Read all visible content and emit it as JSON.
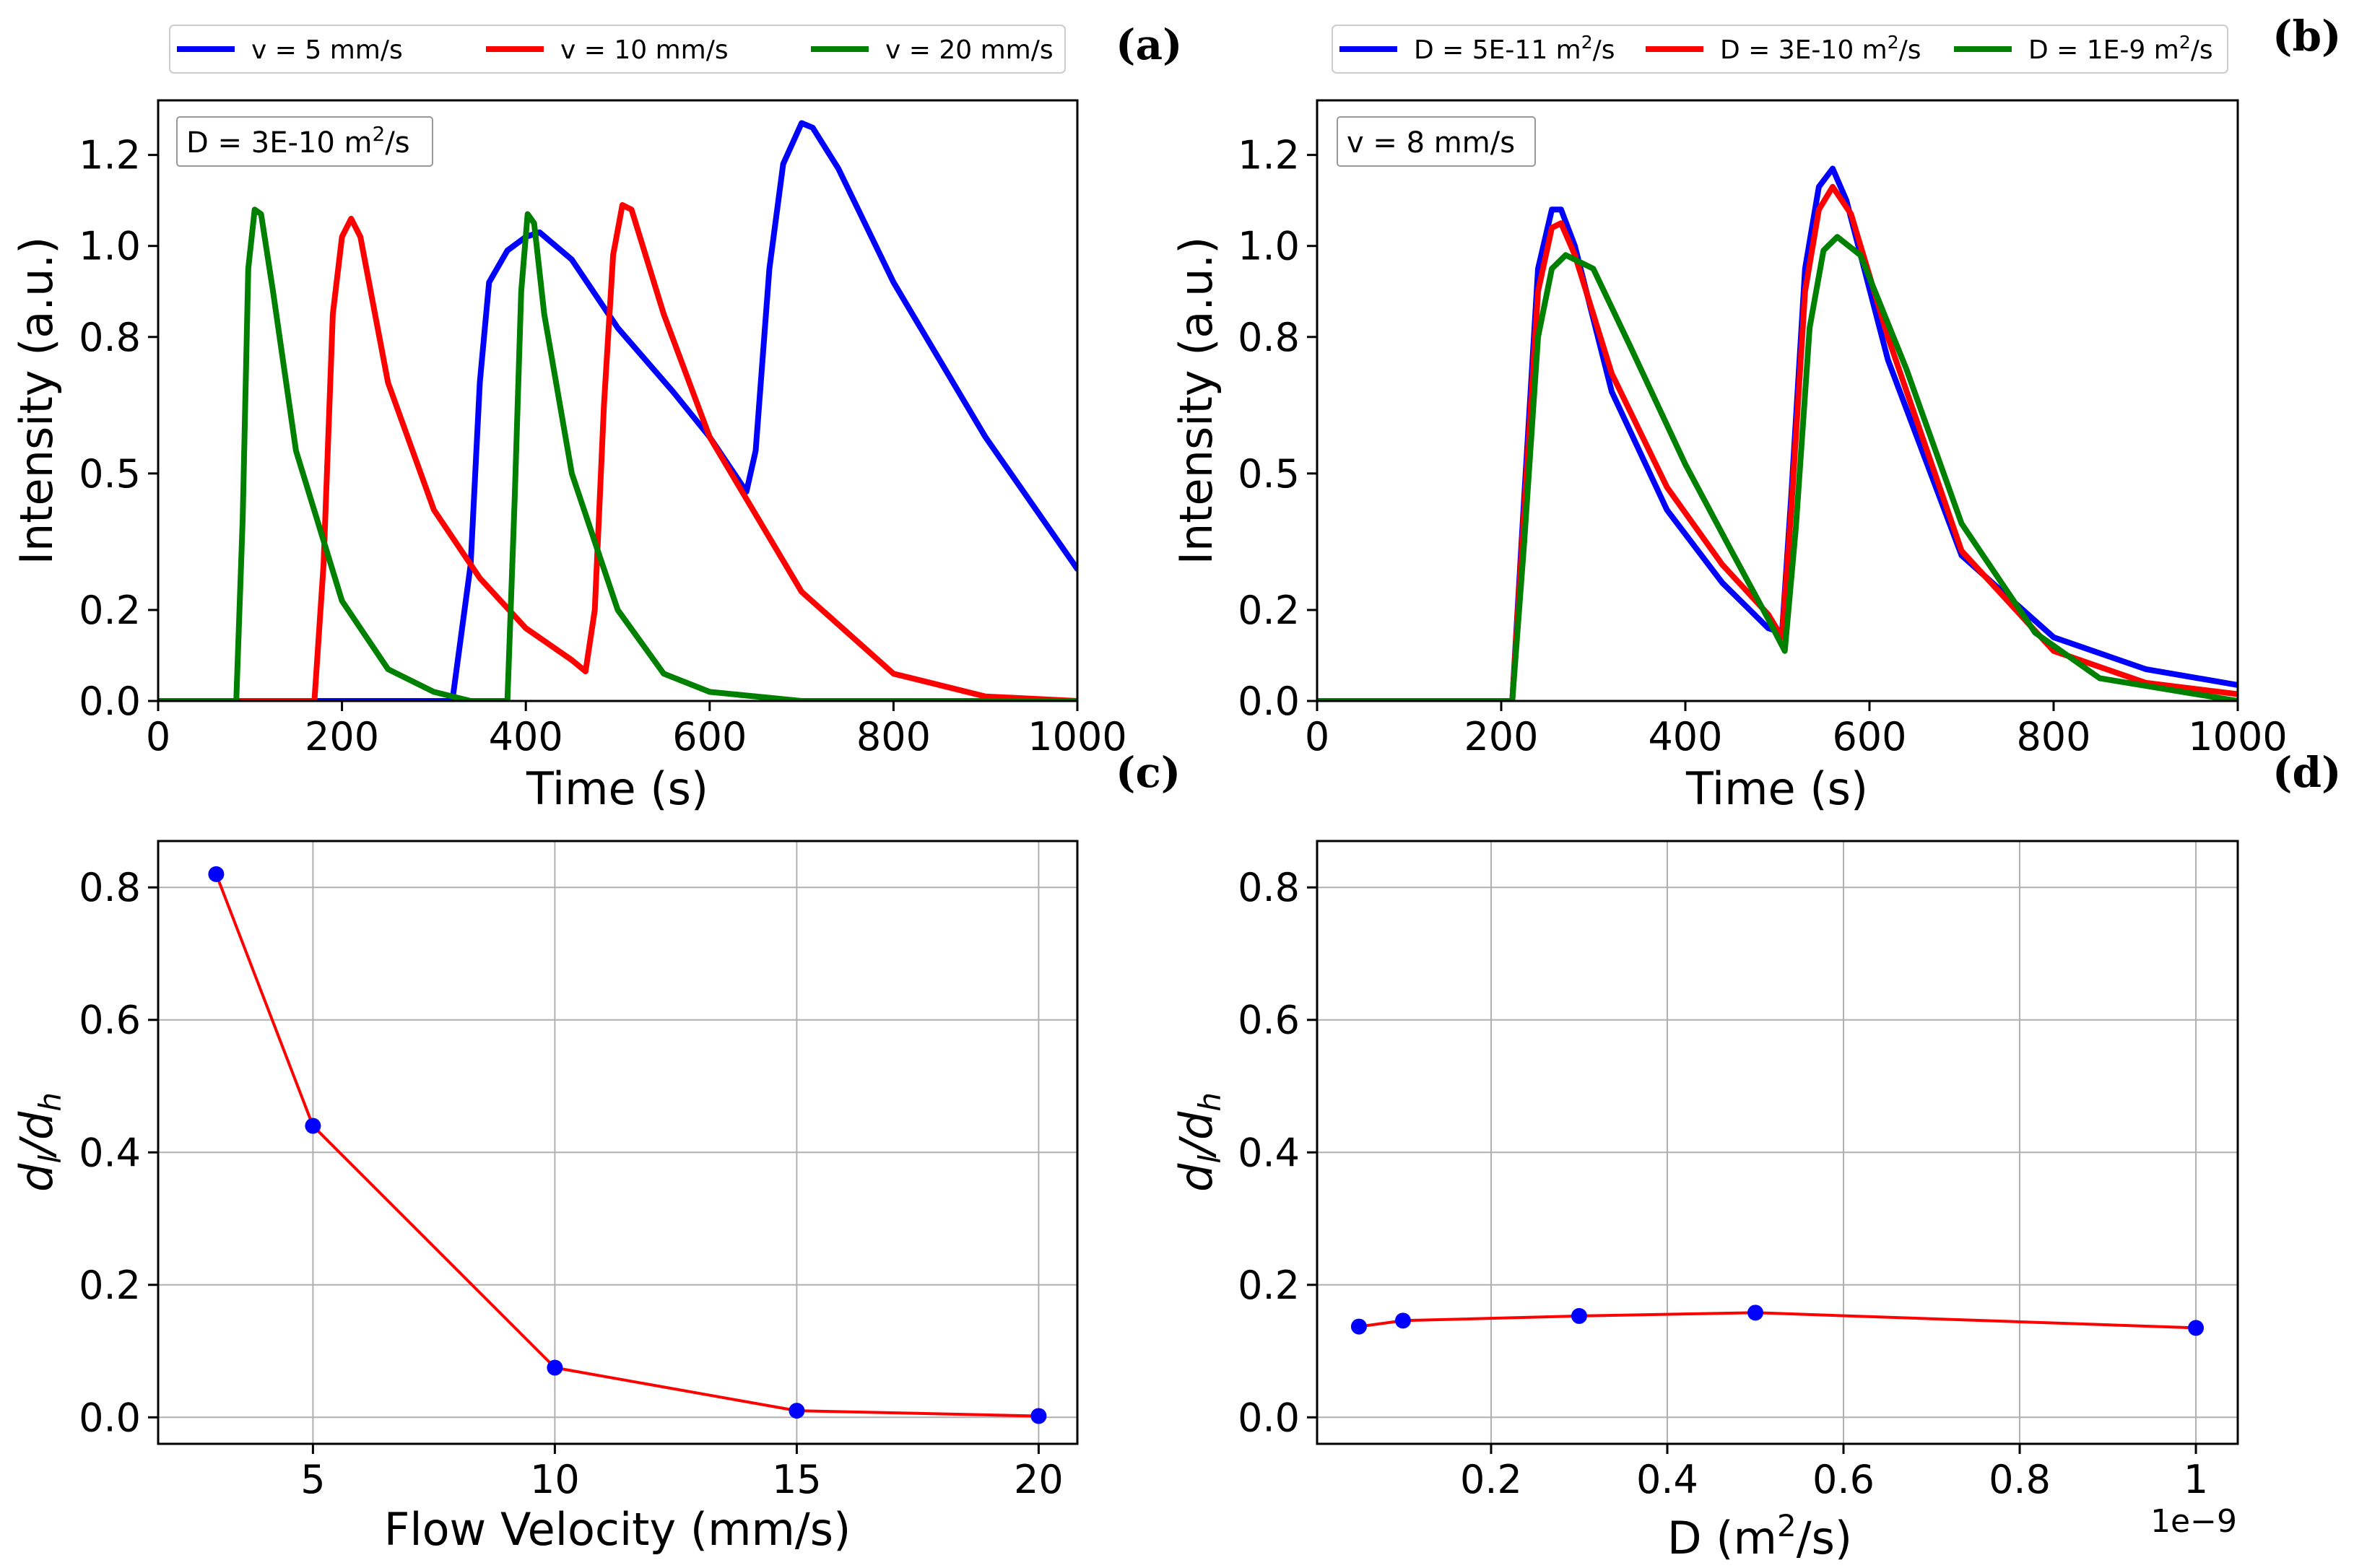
{
  "chart_data": [
    {
      "panel": "a",
      "label": "(a)",
      "type": "line",
      "xlabel": "Time (s)",
      "ylabel": "Intensity (a.u.)",
      "xlim": [
        0,
        1000
      ],
      "ylim": [
        0,
        1.32
      ],
      "xticks": [
        0,
        200,
        400,
        600,
        800,
        1000
      ],
      "yticks": [
        0.0,
        0.2,
        0.5,
        0.8,
        1.0,
        1.2
      ],
      "ytick_labels": [
        "0.0",
        "0.2",
        "0.5",
        "0.8",
        "1.0",
        "1.2"
      ],
      "annotation": {
        "main": "D = 3E-10 m",
        "sup": "2",
        "tail": "/s"
      },
      "legend": [
        {
          "main": "v = 5 mm/s",
          "sup": "",
          "tail": ""
        },
        {
          "main": "v = 10 mm/s",
          "sup": "",
          "tail": ""
        },
        {
          "main": "v = 20 mm/s",
          "sup": "",
          "tail": ""
        }
      ],
      "series": [
        {
          "name": "v = 5 mm/s",
          "color": "#0000ff",
          "x": [
            0,
            320,
            340,
            350,
            360,
            380,
            400,
            415,
            450,
            500,
            560,
            600,
            640,
            650,
            665,
            680,
            700,
            712,
            740,
            800,
            900,
            1000
          ],
          "y": [
            0,
            0,
            0.3,
            0.7,
            0.92,
            0.99,
            1.02,
            1.03,
            0.97,
            0.82,
            0.68,
            0.58,
            0.46,
            0.55,
            0.95,
            1.18,
            1.27,
            1.26,
            1.17,
            0.92,
            0.58,
            0.29
          ]
        },
        {
          "name": "v = 10 mm/s",
          "color": "#ff0000",
          "x": [
            0,
            170,
            180,
            190,
            200,
            210,
            220,
            250,
            300,
            350,
            400,
            450,
            465,
            475,
            485,
            495,
            505,
            515,
            550,
            600,
            700,
            800,
            900,
            1000
          ],
          "y": [
            0,
            0,
            0.3,
            0.85,
            1.02,
            1.06,
            1.02,
            0.7,
            0.42,
            0.27,
            0.16,
            0.09,
            0.065,
            0.2,
            0.65,
            0.98,
            1.09,
            1.08,
            0.85,
            0.58,
            0.24,
            0.06,
            0.01,
            0
          ]
        },
        {
          "name": "v = 20 mm/s",
          "color": "#008000",
          "x": [
            0,
            85,
            92,
            98,
            105,
            112,
            125,
            150,
            200,
            250,
            300,
            340,
            380,
            388,
            395,
            402,
            409,
            420,
            450,
            500,
            550,
            600,
            700,
            800,
            1000
          ],
          "y": [
            0,
            0,
            0.4,
            0.95,
            1.08,
            1.07,
            0.9,
            0.55,
            0.22,
            0.07,
            0.02,
            0,
            0,
            0.45,
            0.9,
            1.07,
            1.05,
            0.85,
            0.5,
            0.2,
            0.06,
            0.02,
            0,
            0,
            0
          ]
        }
      ]
    },
    {
      "panel": "b",
      "label": "(b)",
      "type": "line",
      "xlabel": "Time (s)",
      "ylabel": "Intensity (a.u.)",
      "xlim": [
        0,
        1000
      ],
      "ylim": [
        0,
        1.32
      ],
      "xticks": [
        0,
        200,
        400,
        600,
        800,
        1000
      ],
      "yticks": [
        0.0,
        0.2,
        0.5,
        0.8,
        1.0,
        1.2
      ],
      "ytick_labels": [
        "0.0",
        "0.2",
        "0.5",
        "0.8",
        "1.0",
        "1.2"
      ],
      "annotation": {
        "main": "v = 8 mm/s",
        "sup": "",
        "tail": ""
      },
      "legend": [
        {
          "main": "D = 5E-11 m",
          "sup": "2",
          "tail": "/s"
        },
        {
          "main": "D = 3E-10 m",
          "sup": "2",
          "tail": "/s"
        },
        {
          "main": "D = 1E-9 m",
          "sup": "2",
          "tail": "/s"
        }
      ],
      "series": [
        {
          "name": "D = 5E-11 m²/s",
          "color": "#0000ff",
          "x": [
            0,
            212,
            225,
            240,
            255,
            265,
            280,
            320,
            380,
            440,
            490,
            505,
            515,
            530,
            545,
            560,
            575,
            620,
            700,
            800,
            900,
            1000
          ],
          "y": [
            0,
            0,
            0.45,
            0.95,
            1.08,
            1.08,
            1.0,
            0.68,
            0.42,
            0.26,
            0.16,
            0.15,
            0.45,
            0.95,
            1.13,
            1.17,
            1.1,
            0.75,
            0.32,
            0.14,
            0.07,
            0.035
          ]
        },
        {
          "name": "D = 3E-10 m²/s",
          "color": "#ff0000",
          "x": [
            0,
            212,
            225,
            240,
            255,
            265,
            280,
            320,
            380,
            440,
            490,
            505,
            515,
            530,
            545,
            560,
            580,
            620,
            700,
            800,
            900,
            1000
          ],
          "y": [
            0,
            0,
            0.42,
            0.9,
            1.04,
            1.05,
            0.98,
            0.72,
            0.47,
            0.3,
            0.19,
            0.14,
            0.42,
            0.9,
            1.08,
            1.13,
            1.07,
            0.8,
            0.33,
            0.11,
            0.04,
            0.015
          ]
        },
        {
          "name": "D = 1E-9 m²/s",
          "color": "#008000",
          "x": [
            0,
            212,
            225,
            240,
            255,
            270,
            300,
            340,
            400,
            450,
            490,
            508,
            520,
            535,
            550,
            565,
            590,
            640,
            700,
            780,
            850,
            1000
          ],
          "y": [
            0,
            0,
            0.35,
            0.8,
            0.95,
            0.98,
            0.95,
            0.78,
            0.52,
            0.33,
            0.18,
            0.11,
            0.38,
            0.82,
            0.99,
            1.02,
            0.98,
            0.73,
            0.39,
            0.15,
            0.05,
            0
          ]
        }
      ]
    },
    {
      "panel": "c",
      "label": "(c)",
      "type": "scatter",
      "xlabel": "Flow Velocity (mm/s)",
      "ylabel": {
        "base1": "d",
        "sub1": "l",
        "base2": "/d",
        "sub2": "h"
      },
      "xlim": [
        1.8,
        20.8
      ],
      "ylim": [
        -0.04,
        0.87
      ],
      "xticks": [
        5,
        10,
        15,
        20
      ],
      "yticks": [
        0.0,
        0.2,
        0.4,
        0.6,
        0.8
      ],
      "ytick_labels": [
        "0.0",
        "0.2",
        "0.4",
        "0.6",
        "0.8"
      ],
      "x": [
        3,
        5,
        10,
        15,
        20
      ],
      "y": [
        0.82,
        0.44,
        0.075,
        0.01,
        0.002
      ],
      "marker_color": "#0000ff",
      "line_color": "#ff0000"
    },
    {
      "panel": "d",
      "label": "(d)",
      "type": "scatter",
      "xlabel": {
        "main": "D (m",
        "sup": "2",
        "tail": "/s)"
      },
      "ylabel": {
        "base1": "d",
        "sub1": "l",
        "base2": "/d",
        "sub2": "h"
      },
      "offset_text": "1e−9",
      "xlim": [
        0.0025,
        1.0475
      ],
      "ylim": [
        -0.04,
        0.87
      ],
      "xticks": [
        0.2,
        0.4,
        0.6,
        0.8,
        1.0
      ],
      "yticks": [
        0.0,
        0.2,
        0.4,
        0.6,
        0.8
      ],
      "ytick_labels": [
        "0.0",
        "0.2",
        "0.4",
        "0.6",
        "0.8"
      ],
      "x": [
        0.05,
        0.1,
        0.3,
        0.5,
        1.0
      ],
      "y": [
        0.137,
        0.146,
        0.153,
        0.158,
        0.135
      ],
      "marker_color": "#0000ff",
      "line_color": "#ff0000"
    }
  ]
}
